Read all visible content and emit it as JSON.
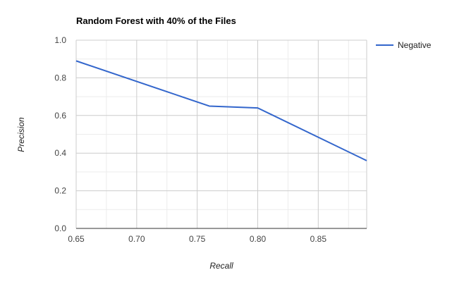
{
  "chart_data": {
    "type": "line",
    "title": "Random Forest with 40% of the Files",
    "xlabel": "Recall",
    "ylabel": "Precision",
    "xlim": [
      0.65,
      0.89
    ],
    "ylim": [
      0.0,
      1.0
    ],
    "x_ticks": [
      0.65,
      0.7,
      0.75,
      0.8,
      0.85
    ],
    "x_tick_labels": [
      "0.65",
      "0.70",
      "0.75",
      "0.80",
      "0.85"
    ],
    "y_ticks": [
      0.0,
      0.2,
      0.4,
      0.6,
      0.8,
      1.0
    ],
    "y_tick_labels": [
      "0.0",
      "0.2",
      "0.4",
      "0.6",
      "0.8",
      "1.0"
    ],
    "grid": true,
    "legend_position": "right",
    "series": [
      {
        "name": "Negative",
        "color": "#3366cc",
        "points": [
          {
            "x": 0.65,
            "y": 0.89
          },
          {
            "x": 0.76,
            "y": 0.65
          },
          {
            "x": 0.8,
            "y": 0.64
          },
          {
            "x": 0.89,
            "y": 0.36
          }
        ]
      }
    ]
  }
}
